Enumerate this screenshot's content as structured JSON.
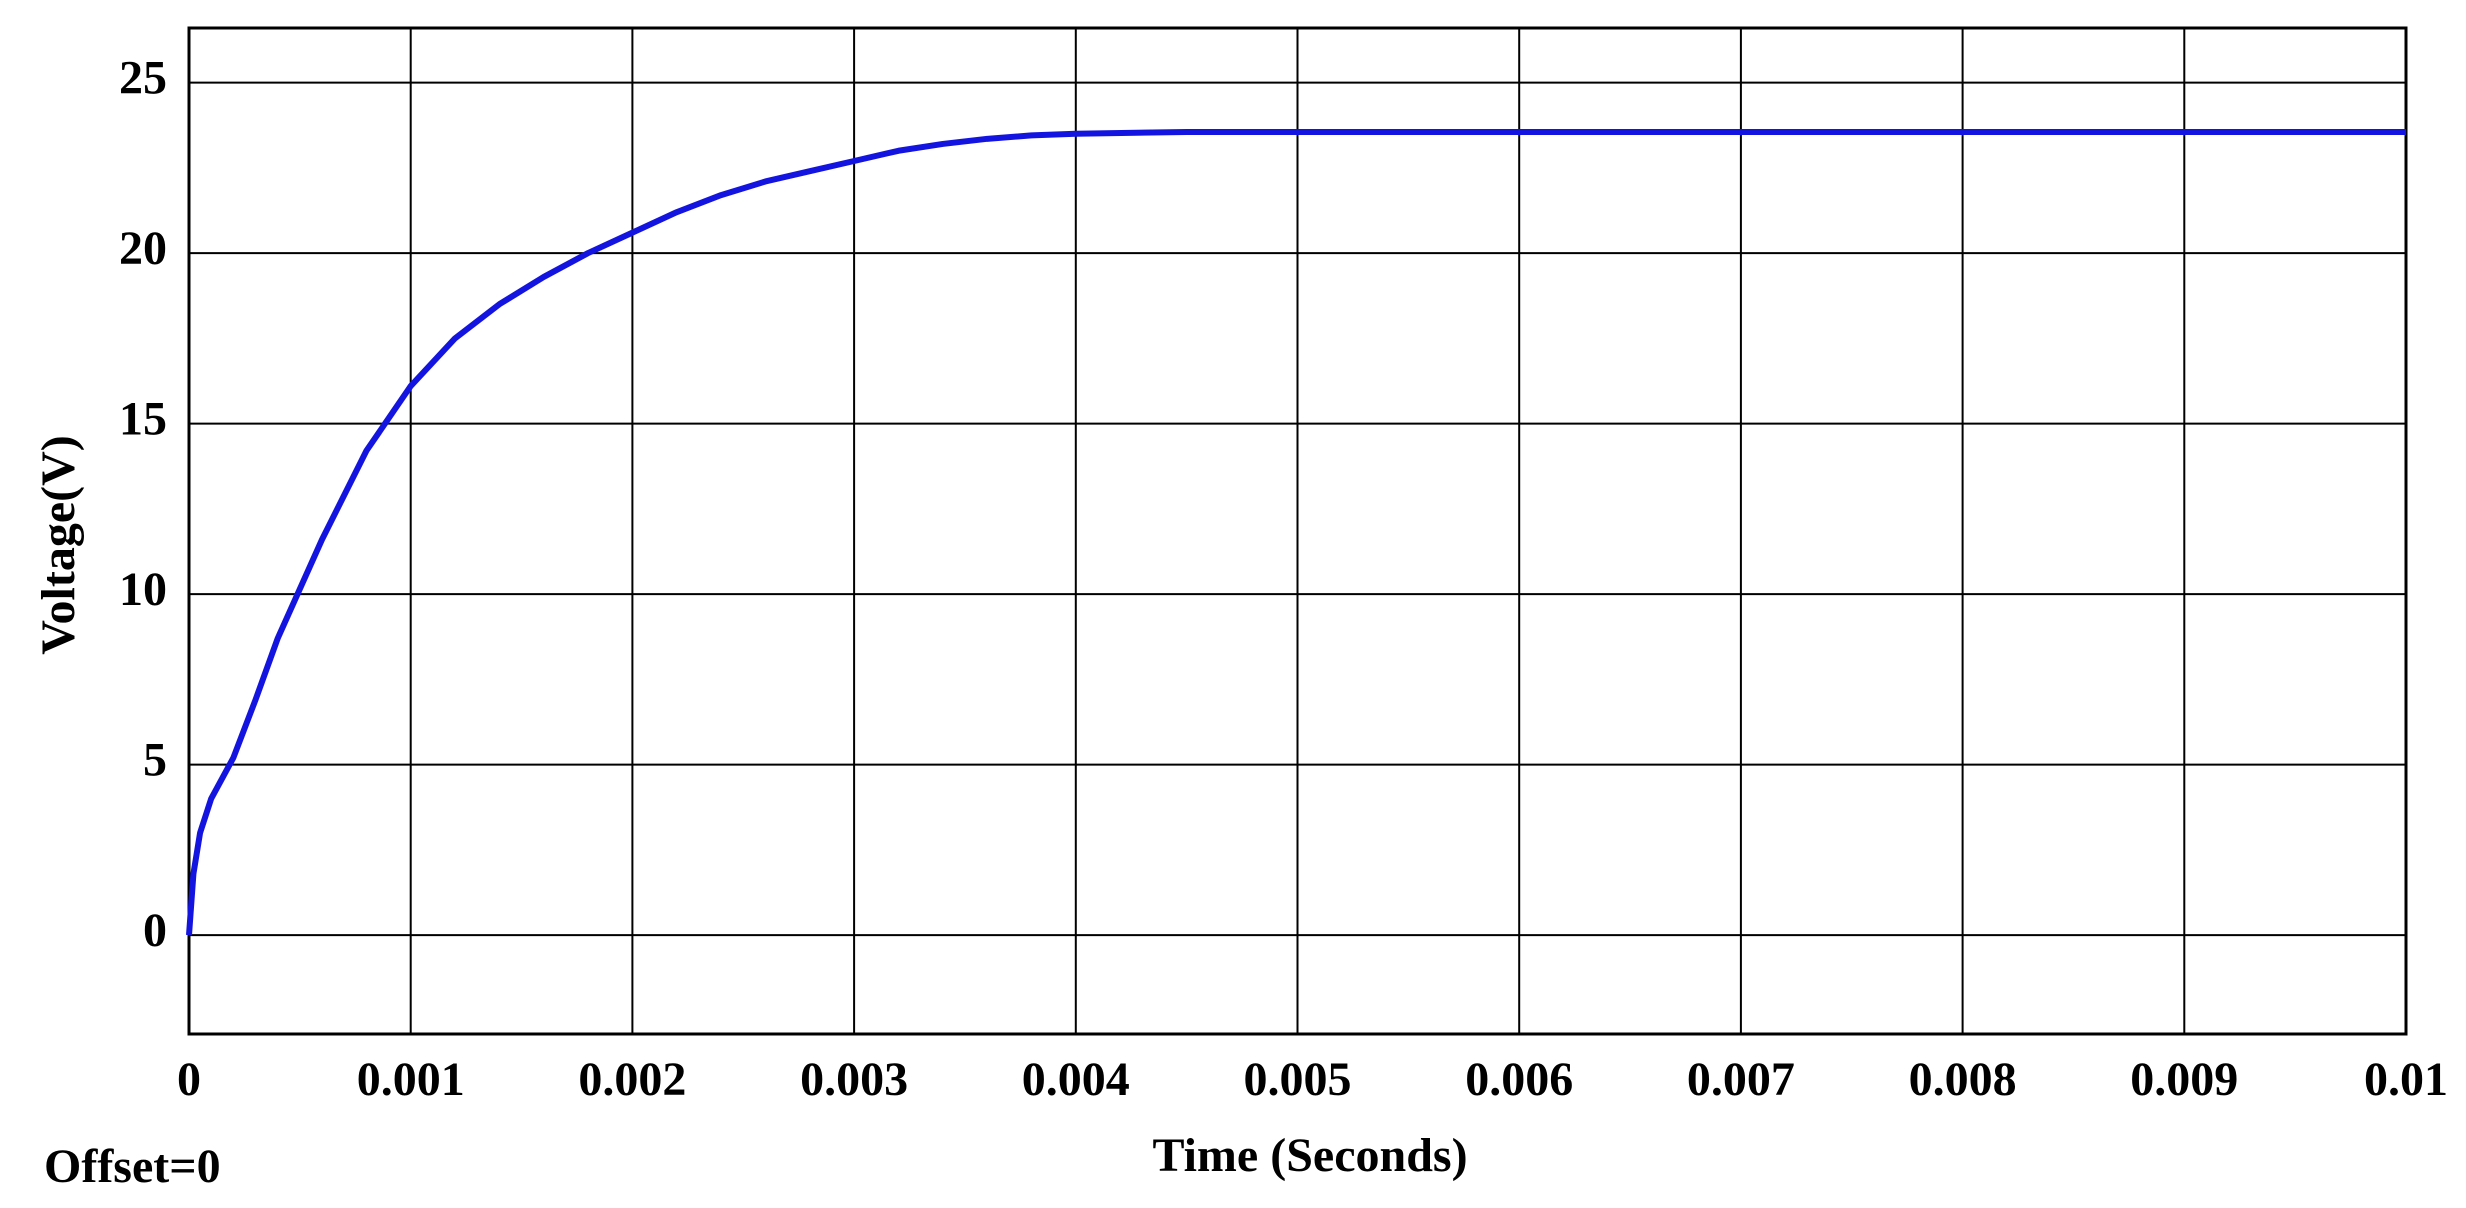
{
  "chart_data": {
    "type": "line",
    "xlabel": "Time (Seconds)",
    "ylabel": "Voltage(V)",
    "annotation": "Offset=0",
    "x": [
      0,
      2e-05,
      5e-05,
      0.0001,
      0.0002,
      0.0003,
      0.0004,
      0.0006,
      0.0008,
      0.001,
      0.0012,
      0.0014,
      0.0016,
      0.0018,
      0.002,
      0.0022,
      0.0024,
      0.0026,
      0.0028,
      0.003,
      0.0032,
      0.0034,
      0.0036,
      0.0038,
      0.004,
      0.0045,
      0.005,
      0.006,
      0.007,
      0.008,
      0.009,
      0.01
    ],
    "values": [
      0,
      1.8,
      3,
      4,
      5.2,
      6.9,
      8.7,
      11.6,
      14.2,
      16.1,
      17.5,
      18.5,
      19.3,
      20,
      20.6,
      21.2,
      21.7,
      22.1,
      22.4,
      22.7,
      23,
      23.2,
      23.35,
      23.45,
      23.5,
      23.55,
      23.55,
      23.55,
      23.55,
      23.55,
      23.55,
      23.55
    ],
    "color": "#1414e0",
    "xlim": [
      0,
      0.01
    ],
    "xticks": [
      0,
      0.001,
      0.002,
      0.003,
      0.004,
      0.005,
      0.006,
      0.007,
      0.008,
      0.009,
      0.01
    ],
    "ylim": [
      -2.9,
      26.6
    ],
    "yticks": [
      0,
      5,
      10,
      15,
      20,
      25
    ],
    "grid": true
  }
}
